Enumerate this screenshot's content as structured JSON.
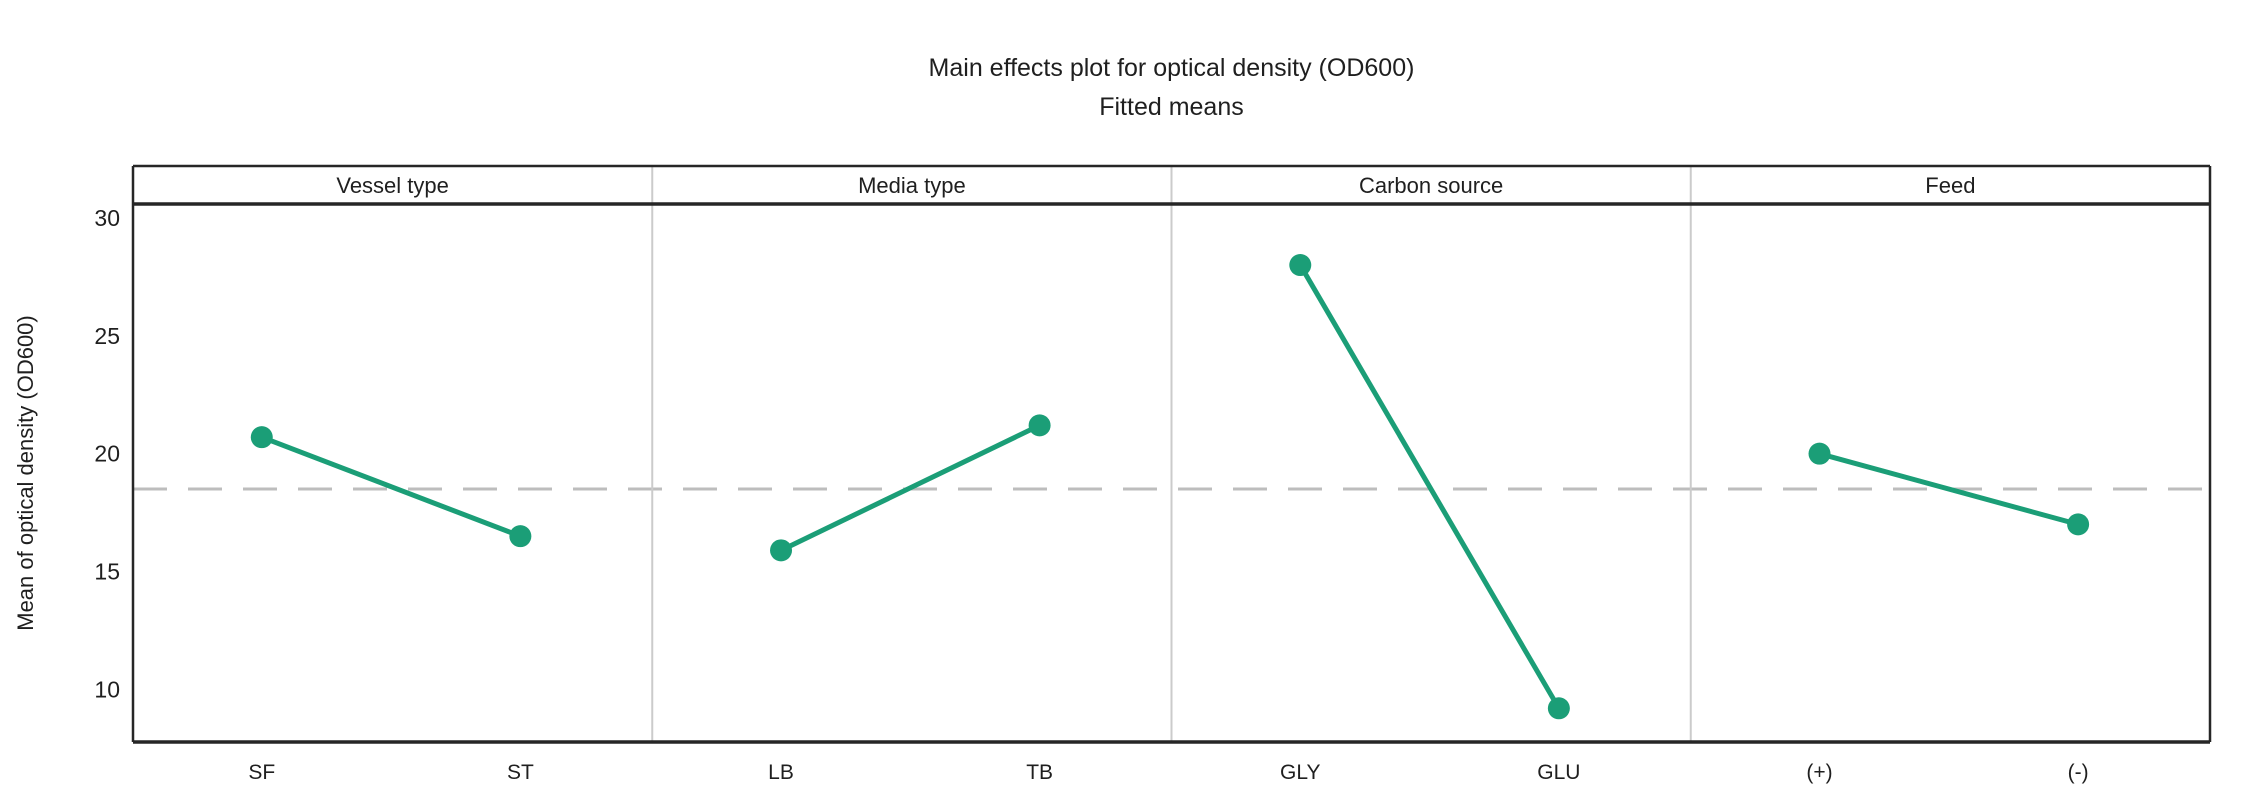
{
  "header": {
    "title": "Main effects plot for optical density (OD600)",
    "subtitle": "Fitted means"
  },
  "y_axis": {
    "label": "Mean of optical density (OD600)"
  },
  "colors": {
    "series": "#1b9e77",
    "grand_mean_line": "#bdbdbd",
    "frame": "#262626",
    "panel_divider": "#cbcbcb",
    "text": "#1f1f1f",
    "background": "#ffffff"
  },
  "chart_data": {
    "type": "line",
    "variant": "main_effects_plot",
    "title": "Main effects plot for optical density (OD600)",
    "subtitle": "Fitted means",
    "ylabel": "Mean of optical density (OD600)",
    "ylim": [
      7.77,
      30.59
    ],
    "yticks": [
      10,
      15,
      20,
      25,
      30
    ],
    "grid": false,
    "legend": null,
    "grand_mean": 18.5,
    "grand_mean_style": "dashed",
    "panels": [
      {
        "factor": "Vessel type",
        "categories": [
          "SF",
          "ST"
        ],
        "values": [
          20.7,
          16.5
        ]
      },
      {
        "factor": "Media type",
        "categories": [
          "LB",
          "TB"
        ],
        "values": [
          15.9,
          21.2
        ]
      },
      {
        "factor": "Carbon source",
        "categories": [
          "GLY",
          "GLU"
        ],
        "values": [
          28.0,
          9.2
        ]
      },
      {
        "factor": "Feed",
        "categories": [
          "(+)",
          "(-)"
        ],
        "values": [
          20.0,
          17.0
        ]
      }
    ]
  }
}
